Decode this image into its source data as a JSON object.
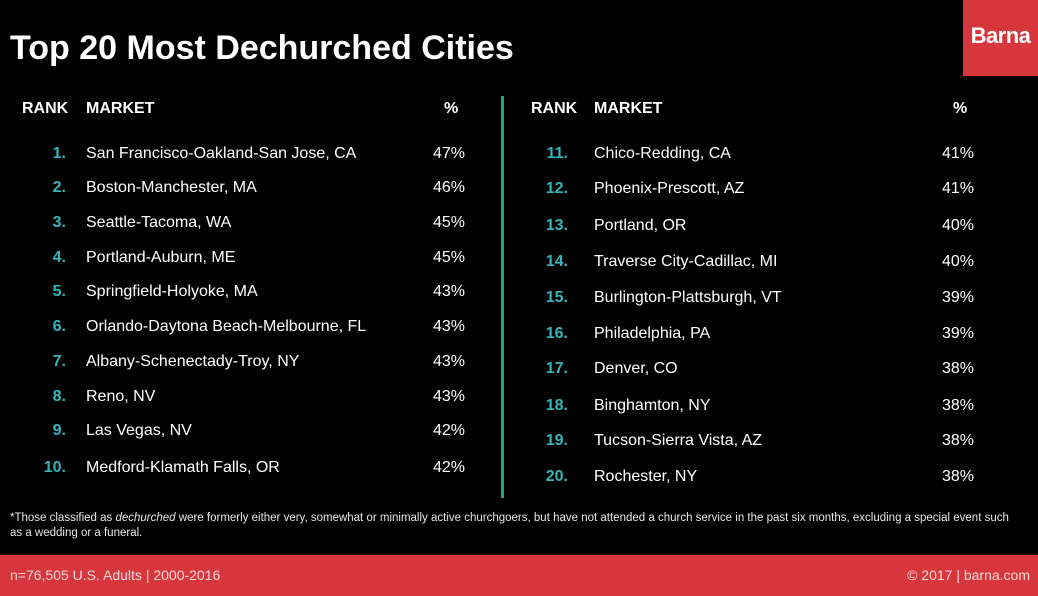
{
  "chart_data": {
    "type": "table",
    "title": "Top 20 Most Dechurched Cities",
    "columns": [
      "RANK",
      "MARKET",
      "%"
    ],
    "rows": [
      {
        "rank": "1.",
        "market": "San Francisco-Oakland-San Jose, CA",
        "pct": "47%"
      },
      {
        "rank": "2.",
        "market": "Boston-Manchester, MA",
        "pct": "46%"
      },
      {
        "rank": "3.",
        "market": "Seattle-Tacoma, WA",
        "pct": "45%"
      },
      {
        "rank": "4.",
        "market": "Portland-Auburn, ME",
        "pct": "45%"
      },
      {
        "rank": "5.",
        "market": "Springfield-Holyoke, MA",
        "pct": "43%"
      },
      {
        "rank": "6.",
        "market": "Orlando-Daytona Beach-Melbourne, FL",
        "pct": "43%"
      },
      {
        "rank": "7.",
        "market": "Albany-Schenectady-Troy, NY",
        "pct": "43%"
      },
      {
        "rank": "8.",
        "market": "Reno, NV",
        "pct": "43%"
      },
      {
        "rank": "9.",
        "market": "Las Vegas, NV",
        "pct": "42%"
      },
      {
        "rank": "10.",
        "market": "Medford-Klamath Falls, OR",
        "pct": "42%"
      },
      {
        "rank": "11.",
        "market": "Chico-Redding, CA",
        "pct": "41%"
      },
      {
        "rank": "12.",
        "market": "Phoenix-Prescott, AZ",
        "pct": "41%"
      },
      {
        "rank": "13.",
        "market": "Portland, OR",
        "pct": "40%"
      },
      {
        "rank": "14.",
        "market": "Traverse City-Cadillac, MI",
        "pct": "40%"
      },
      {
        "rank": "15.",
        "market": "Burlington-Plattsburgh, VT",
        "pct": "39%"
      },
      {
        "rank": "16.",
        "market": "Philadelphia, PA",
        "pct": "39%"
      },
      {
        "rank": "17.",
        "market": "Denver, CO",
        "pct": "38%"
      },
      {
        "rank": "18.",
        "market": "Binghamton, NY",
        "pct": "38%"
      },
      {
        "rank": "19.",
        "market": "Tucson-Sierra Vista, AZ",
        "pct": "38%"
      },
      {
        "rank": "20.",
        "market": "Rochester, NY",
        "pct": "38%"
      }
    ],
    "footnote_prefix": "*Those classified as ",
    "footnote_term": "dechurched",
    "footnote_suffix": " were formerly either very, somewhat or minimally active churchgoers, but have not attended a church service in the past six months, excluding a special event such as a wedding or a funeral.",
    "sample": "n=76,505 U.S. Adults | 2000-2016",
    "copyright": "© 2017 | barna.com"
  },
  "brand": {
    "logo_text": "Barna",
    "accent_color": "#d7373c",
    "rank_color": "#36b6b8",
    "divider_color": "#2a9c9e"
  }
}
